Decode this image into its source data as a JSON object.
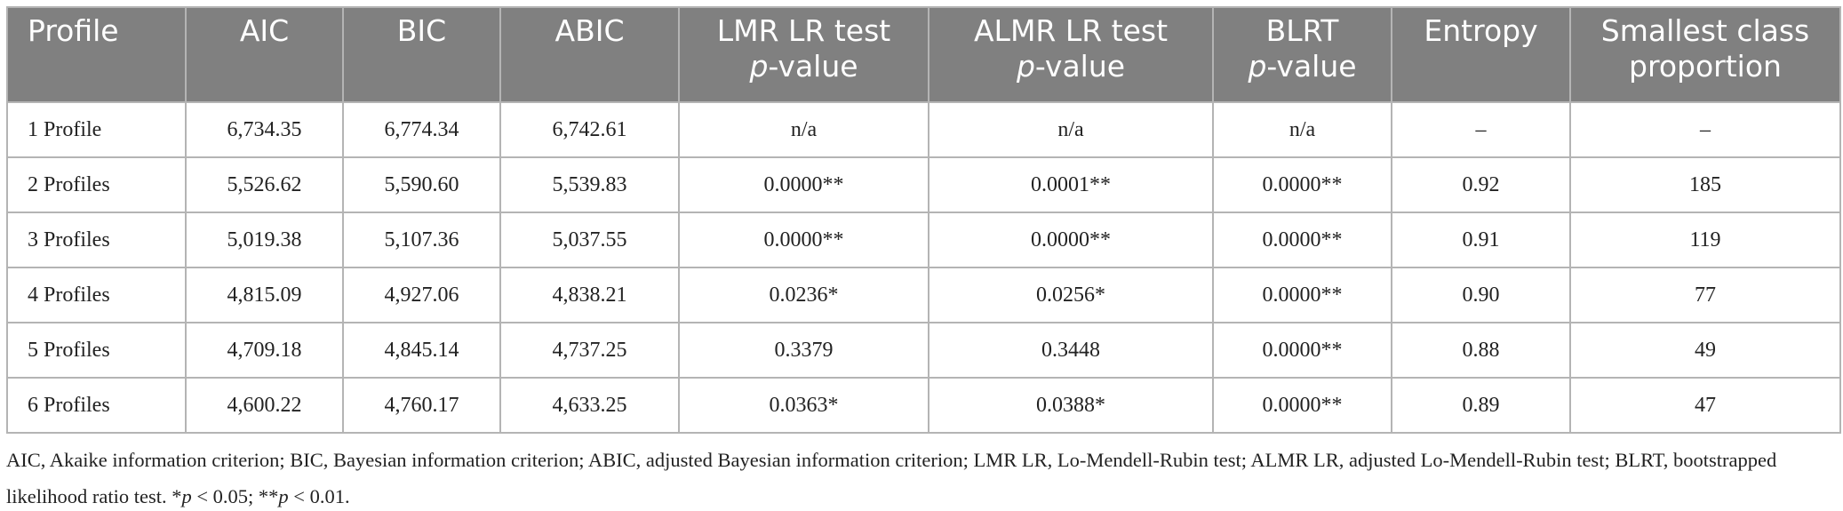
{
  "table": {
    "header": [
      [
        "Profile"
      ],
      [
        "AIC"
      ],
      [
        "BIC"
      ],
      [
        "ABIC"
      ],
      [
        "LMR LR test",
        "p",
        "-value"
      ],
      [
        "ALMR LR test",
        "p",
        "-value"
      ],
      [
        "BLRT",
        "p",
        "-value"
      ],
      [
        "Entropy"
      ],
      [
        "Smallest class",
        "proportion"
      ]
    ],
    "rows": [
      [
        "1 Profile",
        "6,734.35",
        "6,774.34",
        "6,742.61",
        "n/a",
        "n/a",
        "n/a",
        "–",
        "–"
      ],
      [
        "2 Profiles",
        "5,526.62",
        "5,590.60",
        "5,539.83",
        "0.0000**",
        "0.0001**",
        "0.0000**",
        "0.92",
        "185"
      ],
      [
        "3 Profiles",
        "5,019.38",
        "5,107.36",
        "5,037.55",
        "0.0000**",
        "0.0000**",
        "0.0000**",
        "0.91",
        "119"
      ],
      [
        "4 Profiles",
        "4,815.09",
        "4,927.06",
        "4,838.21",
        "0.0236*",
        "0.0256*",
        "0.0000**",
        "0.90",
        "77"
      ],
      [
        "5 Profiles",
        "4,709.18",
        "4,845.14",
        "4,737.25",
        "0.3379",
        "0.3448",
        "0.0000**",
        "0.88",
        "49"
      ],
      [
        "6 Profiles",
        "4,600.22",
        "4,760.17",
        "4,633.25",
        "0.0363*",
        "0.0388*",
        "0.0000**",
        "0.89",
        "47"
      ]
    ]
  },
  "footnote": [
    "AIC, Akaike information criterion; BIC, Bayesian information criterion; ABIC, adjusted Bayesian information criterion; LMR LR, Lo-Mendell-Rubin test; ALMR LR, adjusted Lo-Mendell-Rubin test; BLRT, bootstrapped likelihood ratio test. *",
    "p",
    " < 0.05; **",
    "p",
    " < 0.01."
  ]
}
